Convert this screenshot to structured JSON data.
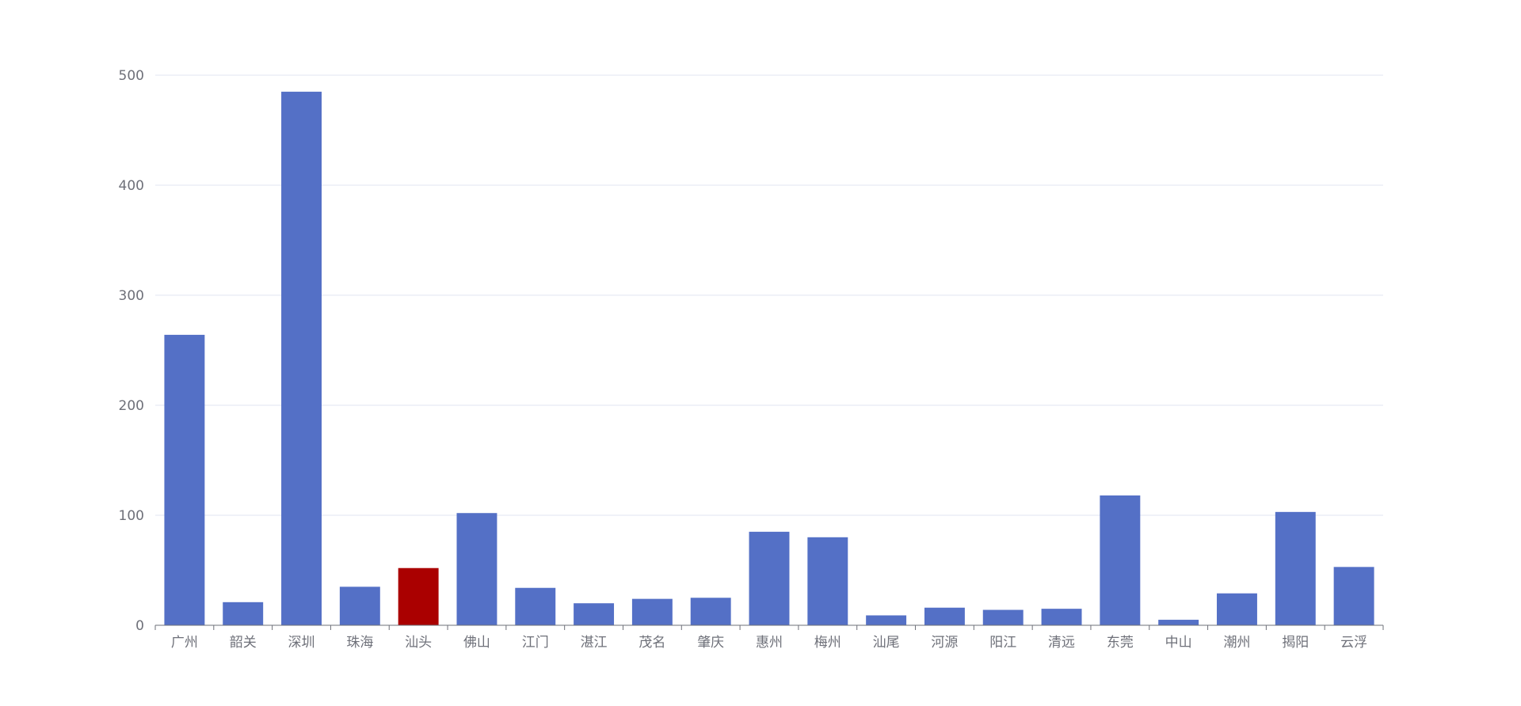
{
  "chart_data": {
    "type": "bar",
    "categories": [
      "广州",
      "韶关",
      "深圳",
      "珠海",
      "汕头",
      "佛山",
      "江门",
      "湛江",
      "茂名",
      "肇庆",
      "惠州",
      "梅州",
      "汕尾",
      "河源",
      "阳江",
      "清远",
      "东莞",
      "中山",
      "潮州",
      "揭阳",
      "云浮"
    ],
    "values": [
      264,
      21,
      485,
      35,
      52,
      102,
      34,
      20,
      24,
      25,
      85,
      80,
      9,
      16,
      14,
      15,
      118,
      5,
      29,
      103,
      53
    ],
    "highlight_category": "汕头",
    "yticks": [
      0,
      100,
      200,
      300,
      400,
      500
    ],
    "ylim": [
      0,
      500
    ],
    "title": "",
    "xlabel": "",
    "ylabel": "",
    "grid": true,
    "colors": {
      "bar": "#5470c6",
      "highlight": "#aa0000",
      "grid": "#e0e6f1",
      "axis": "#6e7079"
    }
  }
}
